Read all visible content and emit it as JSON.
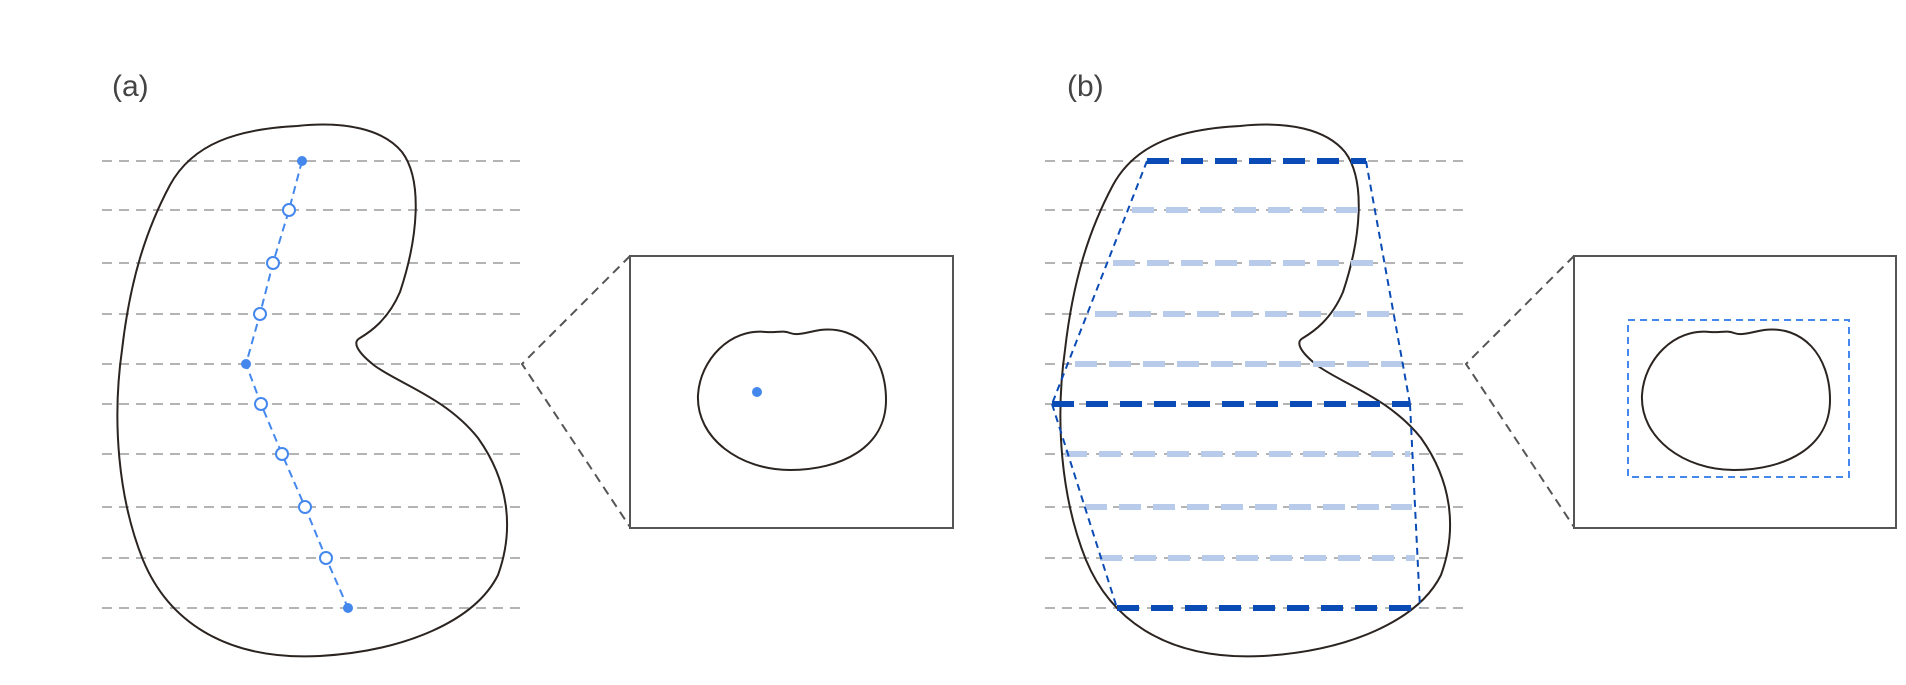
{
  "panels": [
    {
      "id": "a",
      "label": "(a)"
    },
    {
      "id": "b",
      "label": "(b)"
    }
  ],
  "colors": {
    "outline": "#2b2420",
    "scanline": "#b4b4b4",
    "centerline": "#4488ee",
    "key_span": "#0a4bb5",
    "interpolated_span": "#b9cbea",
    "frame": "#555555"
  }
}
